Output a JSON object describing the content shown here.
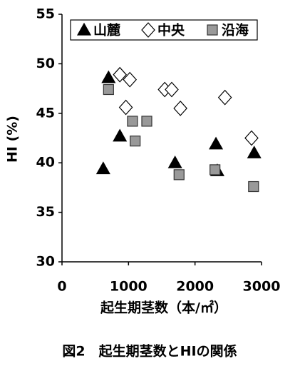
{
  "chart_data": {
    "type": "scatter",
    "x_label": "起生期茎数（本/㎡）",
    "y_label": "HI (%)",
    "caption": "図2　起生期茎数とHIの関係",
    "xlim": [
      0,
      3000
    ],
    "xticks": [
      0,
      1000,
      2000,
      3000
    ],
    "ylim": [
      30,
      55
    ],
    "yticks": [
      30,
      35,
      40,
      45,
      50,
      55
    ],
    "grid": false,
    "legend": "top",
    "series": [
      {
        "name": "山麓",
        "color": "#000000",
        "marker": "triangle",
        "x": [
          620,
          700,
          870,
          1700,
          2315,
          2335,
          2890
        ],
        "values": [
          39.4,
          48.6,
          42.7,
          40.0,
          41.9,
          39.2,
          41.0
        ]
      },
      {
        "name": "中央",
        "color": "#ffffff",
        "marker": "diamond",
        "x": [
          870,
          1020,
          960,
          1545,
          1650,
          1780,
          2450,
          2850
        ],
        "values": [
          48.9,
          48.4,
          45.6,
          47.4,
          47.4,
          45.5,
          46.6,
          42.5
        ]
      },
      {
        "name": "沿海",
        "color": "#999999",
        "marker": "square",
        "x": [
          700,
          1060,
          1275,
          1100,
          1760,
          2300,
          2880
        ],
        "values": [
          47.4,
          44.2,
          44.2,
          42.2,
          38.8,
          39.3,
          37.6
        ]
      }
    ]
  }
}
